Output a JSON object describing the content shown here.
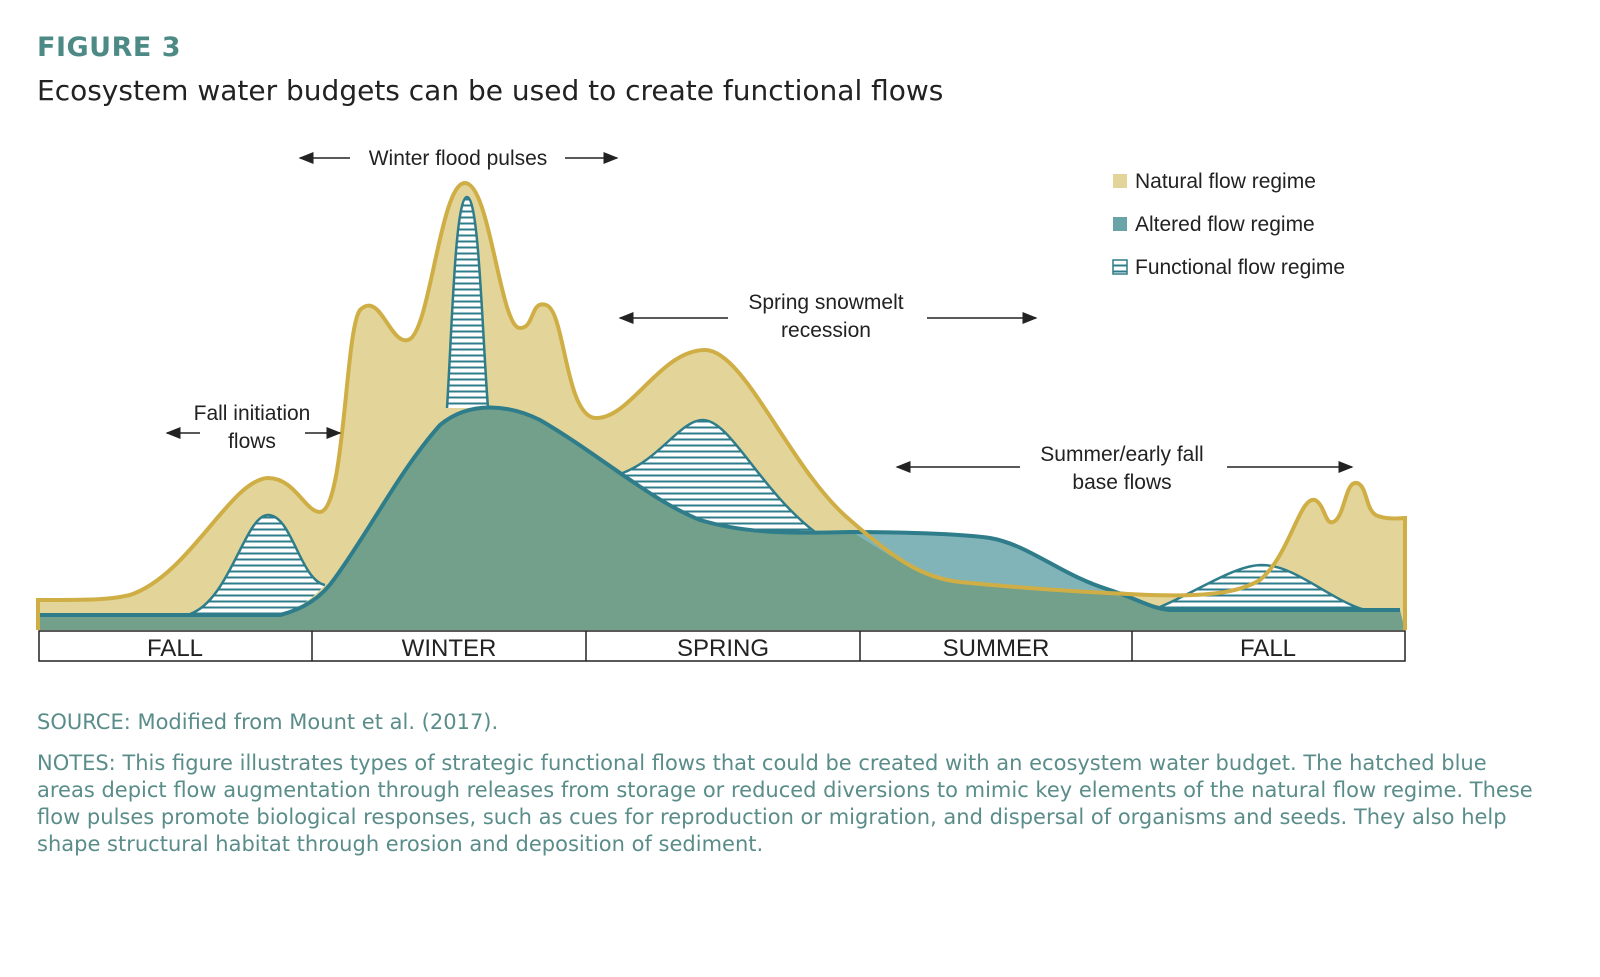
{
  "header": {
    "label": "FIGURE 3",
    "title": "Ecosystem water budgets can be used to create functional flows"
  },
  "legend": [
    "Natural flow regime",
    "Altered flow regime",
    "Functional flow regime"
  ],
  "annotations": {
    "winter": [
      "Winter flood pulses"
    ],
    "fall_initiation": [
      "Fall initiation",
      "flows"
    ],
    "spring": [
      "Spring snowmelt",
      "recession"
    ],
    "summer": [
      "Summer/early fall",
      "base flows"
    ]
  },
  "seasons": [
    "FALL",
    "WINTER",
    "SPRING",
    "SUMMER",
    "FALL"
  ],
  "source": "SOURCE: Modified from Mount et al. (2017).",
  "notes": "NOTES: This figure illustrates types of strategic functional flows that could be created with an ecosystem water budget. The hatched blue areas depict flow augmentation through releases from storage or reduced diversions to mimic key elements of the natural flow regime. These flow pulses promote biological responses, such as cues for reproduction or migration, and dispersal of organisms and seeds. They also help shape structural habitat through erosion and deposition of sediment."
}
